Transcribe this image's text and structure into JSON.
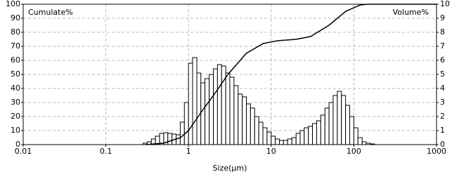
{
  "chart_data": {
    "type": "histogram",
    "xlabel": "Size(μm)",
    "ylabel": "Cumulate%",
    "y2label": "Volume%",
    "xlog": true,
    "grid": true,
    "color": "#ffffff",
    "line_color": "#000000",
    "xlim": [
      0.01,
      1000
    ],
    "xticks": [
      0.01,
      0.1,
      1,
      10,
      100,
      1000
    ],
    "ylim": [
      0,
      100
    ],
    "yticks": [
      0,
      10,
      20,
      30,
      40,
      50,
      60,
      70,
      80,
      90,
      100
    ],
    "y2lim": [
      0,
      10
    ],
    "y2ticks": [
      0,
      1,
      2,
      3,
      4,
      5,
      6,
      7,
      8,
      9,
      10
    ],
    "bins": [
      0.282,
      0.316,
      0.355,
      0.398,
      0.447,
      0.501,
      0.562,
      0.631,
      0.708,
      0.794,
      0.891,
      1,
      1.12,
      1.26,
      1.41,
      1.58,
      1.78,
      2.0,
      2.24,
      2.51,
      2.82,
      3.16,
      3.55,
      3.98,
      4.47,
      5.01,
      5.62,
      6.31,
      7.08,
      7.94,
      8.91,
      10,
      11.2,
      12.6,
      14.1,
      15.8,
      17.8,
      20.0,
      22.4,
      25.1,
      28.2,
      31.6,
      35.5,
      39.8,
      44.7,
      50.1,
      56.2,
      63.1,
      70.8,
      79.4,
      89.1,
      100,
      112,
      126,
      141,
      158,
      178
    ],
    "values": [
      0.1,
      0.2,
      0.4,
      0.6,
      0.8,
      0.85,
      0.8,
      0.75,
      0.7,
      1.6,
      3.0,
      5.8,
      6.2,
      5.1,
      4.4,
      4.7,
      5.0,
      5.4,
      5.7,
      5.6,
      5.1,
      4.8,
      4.2,
      3.6,
      3.4,
      2.9,
      2.6,
      2.0,
      1.6,
      1.2,
      0.9,
      0.6,
      0.4,
      0.3,
      0.3,
      0.4,
      0.5,
      0.8,
      1.0,
      1.2,
      1.3,
      1.5,
      1.7,
      2.1,
      2.6,
      3.0,
      3.5,
      3.8,
      3.5,
      2.8,
      2.0,
      1.2,
      0.5,
      0.2,
      0.1,
      0.05
    ],
    "cumulative": {
      "x": [
        0.3,
        0.5,
        0.8,
        1,
        1.5,
        2,
        3,
        5,
        8,
        12,
        20,
        30,
        50,
        80,
        120,
        150,
        1000
      ],
      "values": [
        0,
        1,
        5,
        10,
        25,
        35,
        50,
        65,
        72,
        74,
        75,
        77,
        85,
        95,
        99.5,
        100,
        100
      ]
    }
  }
}
